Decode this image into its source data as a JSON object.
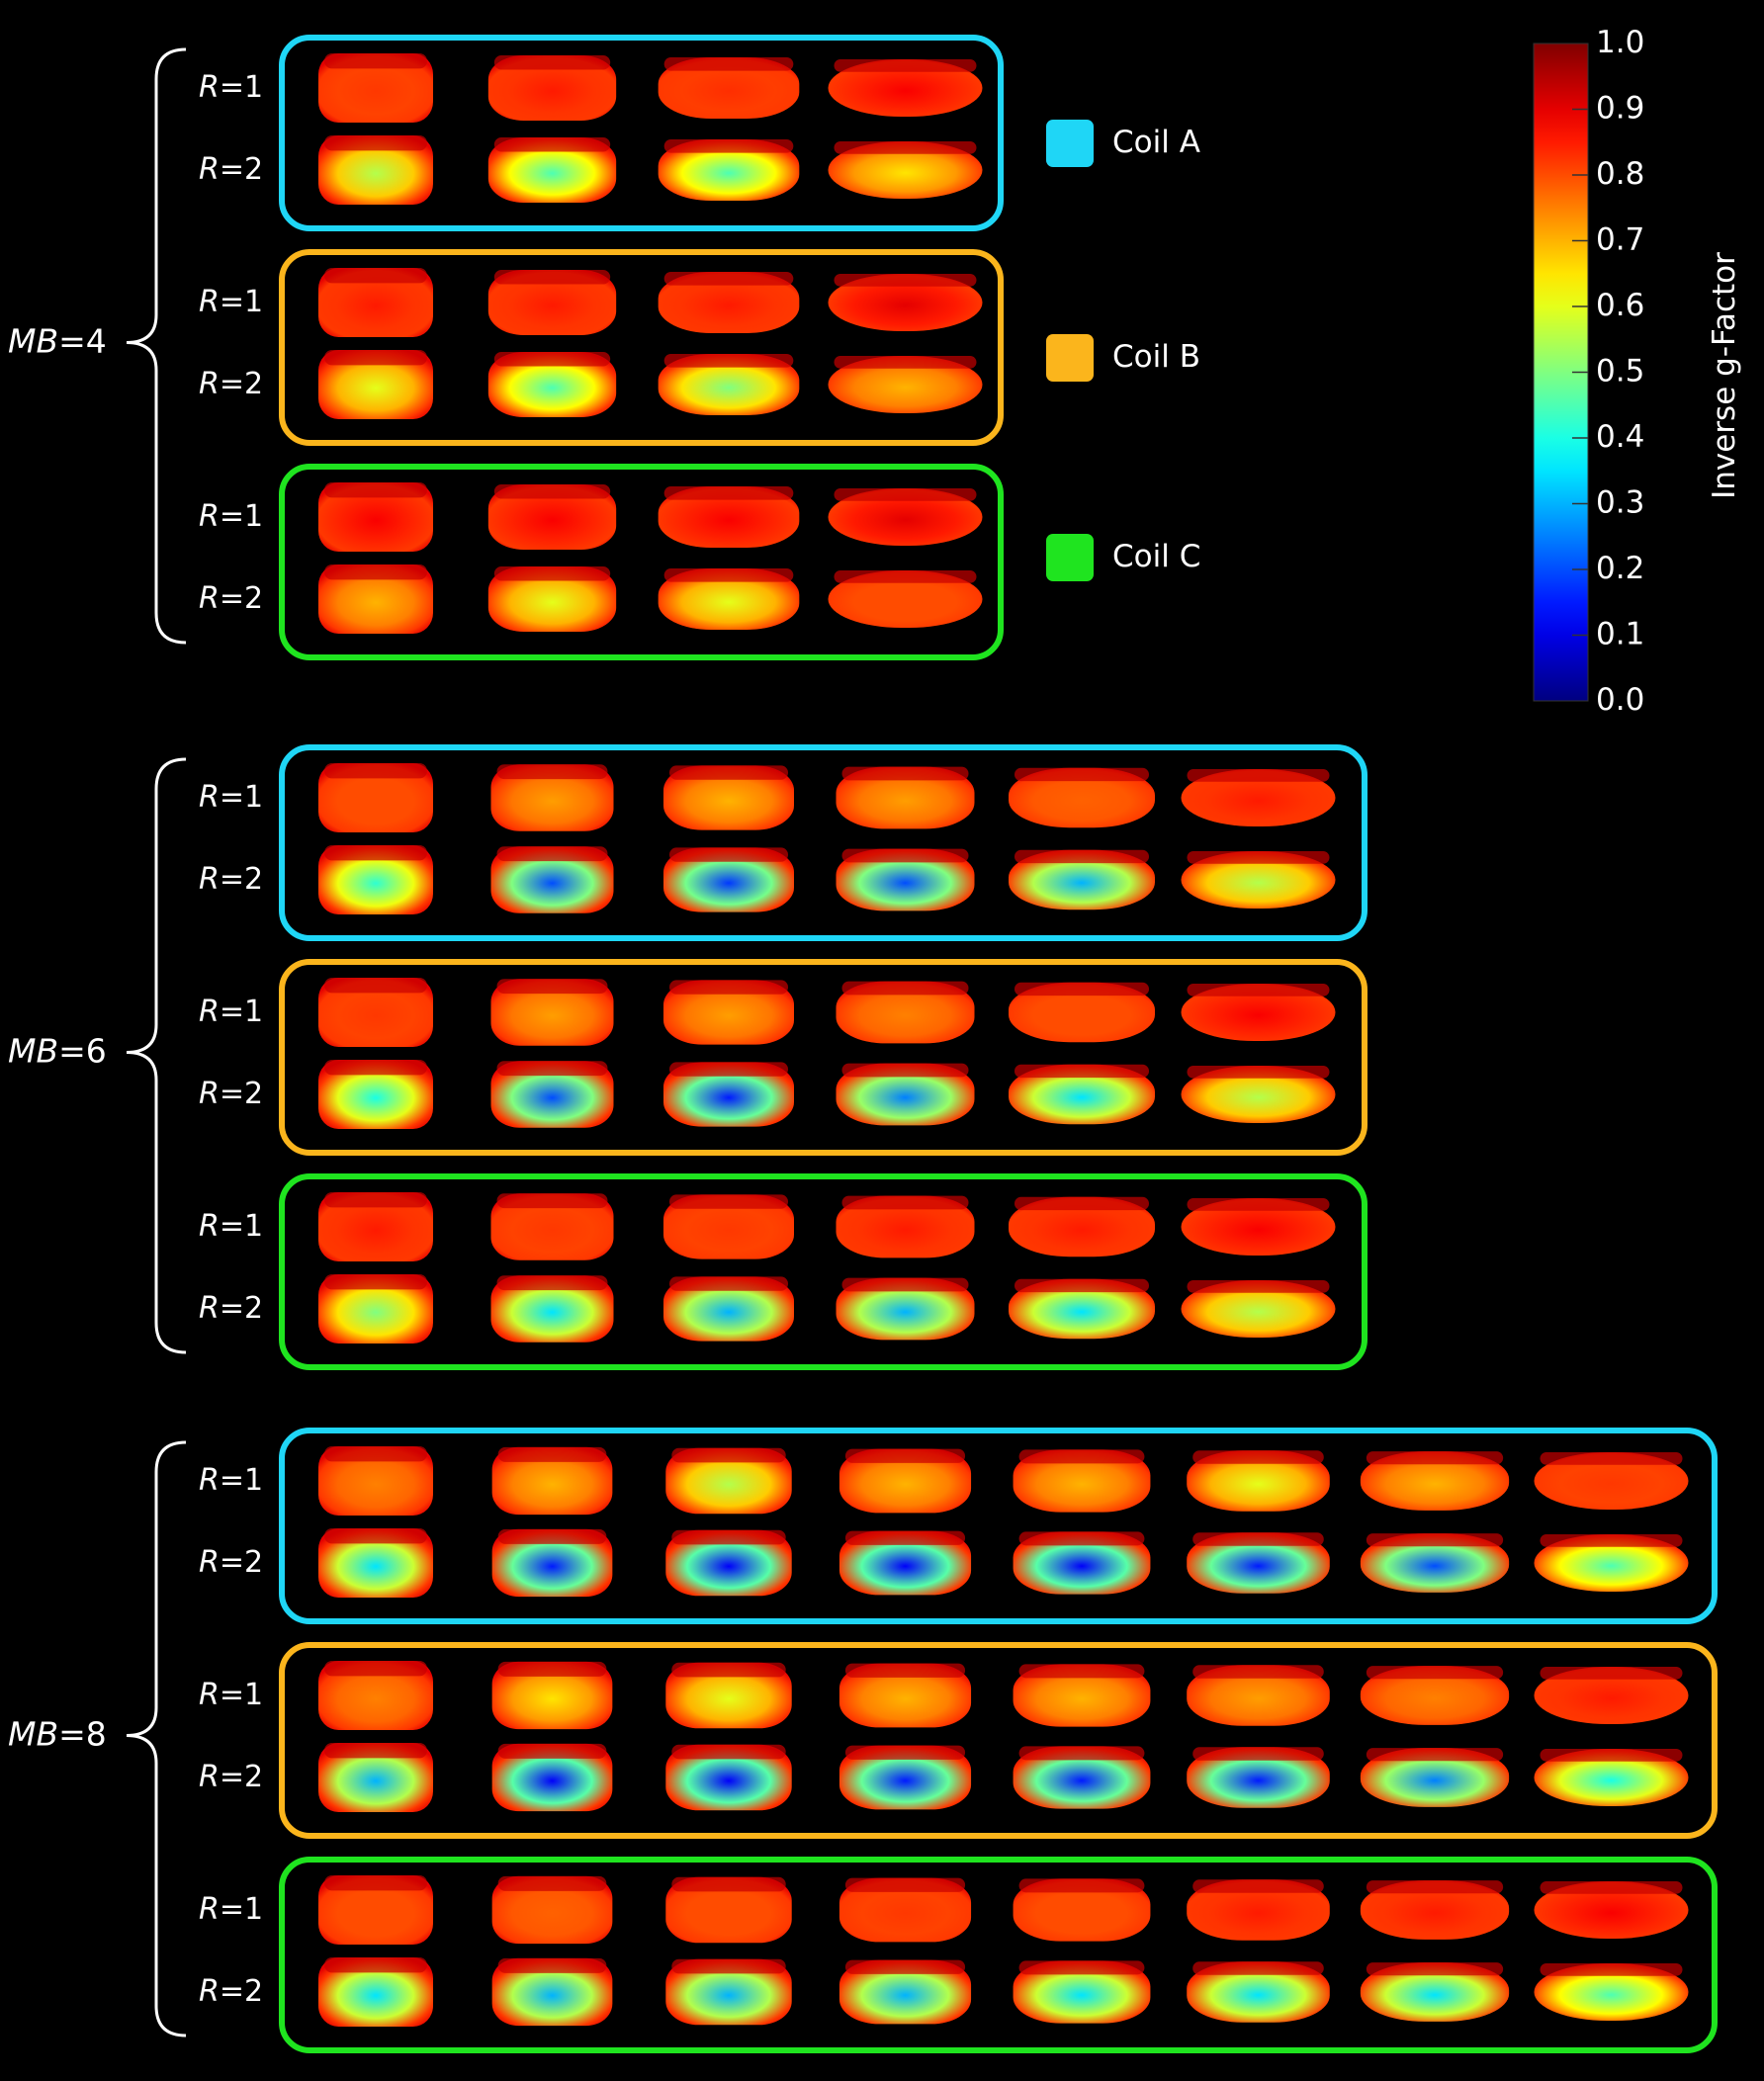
{
  "colorbar": {
    "title": "Inverse g-Factor",
    "ticks": [
      "1.0",
      "0.9",
      "0.8",
      "0.7",
      "0.6",
      "0.5",
      "0.4",
      "0.3",
      "0.2",
      "0.1",
      "0.0"
    ],
    "range": [
      0,
      1
    ]
  },
  "legend": [
    {
      "label": "Coil A",
      "color": "#1fd6f6"
    },
    {
      "label": "Coil B",
      "color": "#fbb51c"
    },
    {
      "label": "Coil C",
      "color": "#1fe41f"
    }
  ],
  "row_labels": {
    "r1": "R=1",
    "r2": "R=2",
    "r_italic": "R",
    "r1_suffix": "=1",
    "r2_suffix": "=2"
  },
  "groups": [
    {
      "label_italic": "MB",
      "label_suffix": "=4",
      "slices": 4,
      "coils": [
        {
          "coil": "Coil A",
          "r1": [
            0.82,
            0.85,
            0.83,
            0.88
          ],
          "r2": [
            0.55,
            0.45,
            0.45,
            0.65
          ]
        },
        {
          "coil": "Coil B",
          "r1": [
            0.85,
            0.85,
            0.85,
            0.9
          ],
          "r2": [
            0.6,
            0.45,
            0.5,
            0.7
          ]
        },
        {
          "coil": "Coil C",
          "r1": [
            0.88,
            0.88,
            0.88,
            0.9
          ],
          "r2": [
            0.7,
            0.6,
            0.6,
            0.8
          ]
        }
      ]
    },
    {
      "label_italic": "MB",
      "label_suffix": "=6",
      "slices": 6,
      "coils": [
        {
          "coil": "Coil A",
          "r1": [
            0.8,
            0.72,
            0.7,
            0.72,
            0.78,
            0.85
          ],
          "r2": [
            0.42,
            0.2,
            0.18,
            0.2,
            0.3,
            0.55
          ]
        },
        {
          "coil": "Coil B",
          "r1": [
            0.82,
            0.72,
            0.72,
            0.75,
            0.8,
            0.88
          ],
          "r2": [
            0.4,
            0.2,
            0.15,
            0.25,
            0.35,
            0.55
          ]
        },
        {
          "coil": "Coil C",
          "r1": [
            0.85,
            0.82,
            0.82,
            0.85,
            0.85,
            0.88
          ],
          "r2": [
            0.5,
            0.35,
            0.3,
            0.3,
            0.35,
            0.55
          ]
        }
      ]
    },
    {
      "label_italic": "MB",
      "label_suffix": "=8",
      "slices": 8,
      "coils": [
        {
          "coil": "Coil A",
          "r1": [
            0.75,
            0.7,
            0.55,
            0.7,
            0.7,
            0.6,
            0.7,
            0.82
          ],
          "r2": [
            0.35,
            0.15,
            0.12,
            0.12,
            0.12,
            0.15,
            0.2,
            0.45
          ]
        },
        {
          "coil": "Coil B",
          "r1": [
            0.75,
            0.65,
            0.6,
            0.7,
            0.7,
            0.72,
            0.75,
            0.85
          ],
          "r2": [
            0.3,
            0.12,
            0.12,
            0.15,
            0.15,
            0.15,
            0.25,
            0.4
          ]
        },
        {
          "coil": "Coil C",
          "r1": [
            0.8,
            0.78,
            0.8,
            0.82,
            0.8,
            0.85,
            0.85,
            0.88
          ],
          "r2": [
            0.35,
            0.3,
            0.3,
            0.3,
            0.35,
            0.35,
            0.35,
            0.45
          ]
        }
      ]
    }
  ]
}
